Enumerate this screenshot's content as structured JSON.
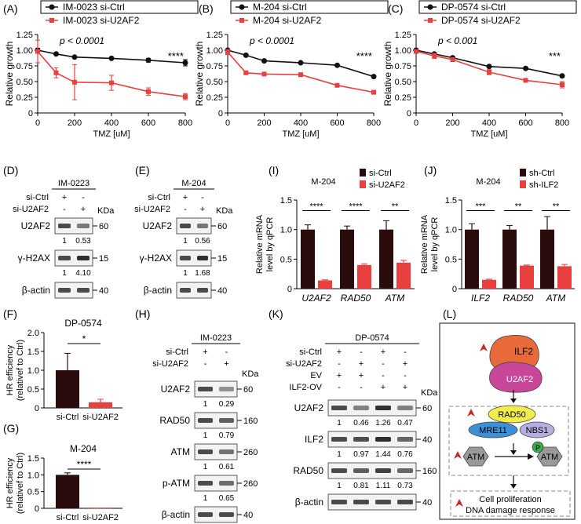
{
  "colors": {
    "ctrl": "#111111",
    "kd": "#e8403f",
    "bar_ctrl": "#2b0c0c",
    "bar_kd": "#e8403f",
    "band": "#2e2e2e",
    "gray": "#888888",
    "ilf2_top": "#e86a3a",
    "u2af2": "#c9479b",
    "rad50": "#f2ee49",
    "mre11": "#3d8fd8",
    "nbs1": "#b5aee0",
    "p_circle": "#3daa4e",
    "hex": "#9a9a9a",
    "arrow": "#c62828"
  },
  "chart_data": [
    {
      "panel": "(A)",
      "type": "line",
      "xlabel": "TMZ [uM]",
      "ylabel": "Relative growth",
      "xticks": [
        0,
        200,
        400,
        600,
        800
      ],
      "yticks": [
        "0",
        "0.25",
        "0.50",
        "0.75",
        "1.00",
        "1.25"
      ],
      "ylim": [
        0,
        1.25
      ],
      "pvalue": "p < 0.0001",
      "signif": "****",
      "x": [
        0,
        100,
        200,
        400,
        600,
        800
      ],
      "series": [
        {
          "name": "IM-0023 si-Ctrl",
          "values": [
            1.0,
            0.94,
            0.89,
            0.87,
            0.84,
            0.8
          ],
          "err": [
            0.03,
            0.02,
            0.01,
            0.01,
            0.03,
            0.05
          ]
        },
        {
          "name": "IM-0023 si-U2AF2",
          "values": [
            0.98,
            0.64,
            0.49,
            0.48,
            0.34,
            0.26
          ],
          "err": [
            0.18,
            0.08,
            0.28,
            0.12,
            0.06,
            0.05
          ]
        }
      ]
    },
    {
      "panel": "(B)",
      "type": "line",
      "xlabel": "TMZ [uM]",
      "ylabel": "Relative growth",
      "xticks": [
        0,
        200,
        400,
        600,
        800
      ],
      "yticks": [
        "0",
        "0.25",
        "0.50",
        "0.75",
        "1.00",
        "1.25"
      ],
      "ylim": [
        0,
        1.25
      ],
      "pvalue": "p < 0.0001",
      "signif": "****",
      "x": [
        0,
        100,
        200,
        400,
        600,
        800
      ],
      "series": [
        {
          "name": "M-204 si-Ctrl",
          "values": [
            1.0,
            0.92,
            0.83,
            0.8,
            0.76,
            0.58
          ],
          "err": [
            0.01,
            0.01,
            0.01,
            0.01,
            0.01,
            0.01
          ]
        },
        {
          "name": "M-204 si-U2AF2",
          "values": [
            0.97,
            0.64,
            0.62,
            0.61,
            0.44,
            0.33
          ],
          "err": [
            0.04,
            0.02,
            0.02,
            0.02,
            0.02,
            0.01
          ]
        }
      ]
    },
    {
      "panel": "(C)",
      "type": "line",
      "xlabel": "TMZ [uM]",
      "ylabel": "Relative growth",
      "xticks": [
        0,
        200,
        400,
        600,
        800
      ],
      "yticks": [
        "0",
        "0.25",
        "0.50",
        "0.75",
        "1.00",
        "1.25"
      ],
      "ylim": [
        0,
        1.25
      ],
      "pvalue": "p < 0.001",
      "signif": "***",
      "x": [
        0,
        100,
        200,
        400,
        600,
        800
      ],
      "series": [
        {
          "name": "DP-0574 si-Ctrl",
          "values": [
            1.0,
            0.94,
            0.88,
            0.74,
            0.71,
            0.59
          ],
          "err": [
            0.02,
            0.02,
            0.02,
            0.02,
            0.01,
            0.02
          ]
        },
        {
          "name": "DP-0574 si-U2AF2",
          "values": [
            0.98,
            0.91,
            0.85,
            0.65,
            0.52,
            0.45
          ],
          "err": [
            0.02,
            0.04,
            0.03,
            0.04,
            0.03,
            0.05
          ]
        }
      ]
    },
    {
      "panel": "(I)",
      "type": "bar",
      "title": "M-204",
      "ylabel": "Relative mRNA level by qPCR",
      "yticks": [
        "0",
        "0.5",
        "1.0",
        "1.5"
      ],
      "ylim": [
        0,
        1.5
      ],
      "categories": [
        "U2AF2",
        "RAD50",
        "ATM"
      ],
      "signif": [
        "****",
        "****",
        "**"
      ],
      "series": [
        {
          "name": "si-Ctrl",
          "values": [
            1.0,
            1.0,
            1.0
          ],
          "err": [
            0.08,
            0.06,
            0.15
          ]
        },
        {
          "name": "si-U2AF2",
          "values": [
            0.14,
            0.4,
            0.44
          ],
          "err": [
            0.01,
            0.02,
            0.04
          ]
        }
      ]
    },
    {
      "panel": "(J)",
      "type": "bar",
      "title": "M-204",
      "ylabel": "Relative mRNA level by qPCR",
      "yticks": [
        "0",
        "0.5",
        "1.0",
        "1.5"
      ],
      "ylim": [
        0,
        1.5
      ],
      "categories": [
        "ILF2",
        "RAD50",
        "ATM"
      ],
      "signif": [
        "***",
        "**",
        "**"
      ],
      "series": [
        {
          "name": "sh-Ctrl",
          "values": [
            1.0,
            1.0,
            1.0
          ],
          "err": [
            0.1,
            0.07,
            0.22
          ]
        },
        {
          "name": "sh-ILF2",
          "values": [
            0.15,
            0.39,
            0.38
          ],
          "err": [
            0.01,
            0.01,
            0.03
          ]
        }
      ]
    },
    {
      "panel": "(F)",
      "type": "bar",
      "title": "DP-0574",
      "ylabel": "HR efficiency (relativef to Ctrl)",
      "yticks": [
        "0",
        "0.5",
        "1.0",
        "1.5",
        "2.0"
      ],
      "ylim": [
        0,
        2.0
      ],
      "categories": [
        "si-Ctrl",
        "si-U2AF2"
      ],
      "signif": "*",
      "values": [
        1.0,
        0.15
      ],
      "err": [
        0.45,
        0.08
      ]
    },
    {
      "panel": "(G)",
      "type": "bar",
      "title": "M-204",
      "ylabel": "HR efficiency (relativef to Ctrl)",
      "yticks": [
        "0",
        "0.5",
        "1.0",
        "1.5"
      ],
      "ylim": [
        0,
        1.5
      ],
      "categories": [
        "si-Ctrl",
        "si-U2AF2"
      ],
      "signif": "****",
      "values": [
        1.0,
        0.02
      ],
      "err": [
        0.06,
        0.0
      ]
    }
  ],
  "blots": {
    "D": {
      "label": "(D)",
      "cell": "IM-0223",
      "rows": [
        {
          "name": "si-Ctrl",
          "marks": [
            "+",
            "-"
          ]
        },
        {
          "name": "si-U2AF2",
          "marks": [
            "-",
            "+"
          ]
        }
      ],
      "kda": "KDa",
      "bands": [
        {
          "name": "U2AF2",
          "mw": "60",
          "quant": [
            "1",
            "0.53"
          ]
        },
        {
          "name": "γ-H2AX",
          "mw": "15",
          "quant": [
            "1",
            "4.10"
          ]
        },
        {
          "name": "β-actin",
          "mw": "40"
        }
      ]
    },
    "E": {
      "label": "(E)",
      "cell": "M-204",
      "rows": [
        {
          "name": "si-Ctrl",
          "marks": [
            "+",
            "-"
          ]
        },
        {
          "name": "si-U2AF2",
          "marks": [
            "-",
            "+"
          ]
        }
      ],
      "kda": "KDa",
      "bands": [
        {
          "name": "U2AF2",
          "mw": "60",
          "quant": [
            "1",
            "0.56"
          ]
        },
        {
          "name": "γ-H2AX",
          "mw": "15",
          "quant": [
            "1",
            "1.68"
          ]
        },
        {
          "name": "β-actin",
          "mw": "40"
        }
      ]
    },
    "H": {
      "label": "(H)",
      "cell": "IM-0223",
      "rows": [
        {
          "name": "si-Ctrl",
          "marks": [
            "+",
            "-"
          ]
        },
        {
          "name": "si-U2AF2",
          "marks": [
            "-",
            "+"
          ]
        }
      ],
      "kda": "KDa",
      "bands": [
        {
          "name": "U2AF2",
          "mw": "60",
          "quant": [
            "1",
            "0.29"
          ]
        },
        {
          "name": "RAD50",
          "mw": "160",
          "quant": [
            "1",
            "0.79"
          ]
        },
        {
          "name": "ATM",
          "mw": "260",
          "quant": [
            "1",
            "0.61"
          ]
        },
        {
          "name": "p-ATM",
          "mw": "260",
          "quant": [
            "1",
            "0.65"
          ]
        },
        {
          "name": "β-actin",
          "mw": "40"
        }
      ]
    },
    "K": {
      "label": "(K)",
      "cell": "DP-0574",
      "rows": [
        {
          "name": "si-Ctrl",
          "marks": [
            "+",
            "-",
            "+",
            "-"
          ]
        },
        {
          "name": "si-U2AF2",
          "marks": [
            "-",
            "+",
            "-",
            "+"
          ]
        },
        {
          "name": "EV",
          "marks": [
            "+",
            "+",
            "-",
            "-"
          ]
        },
        {
          "name": "ILF2-OV",
          "marks": [
            "-",
            "-",
            "+",
            "+"
          ]
        }
      ],
      "kda": "KDa",
      "bands": [
        {
          "name": "U2AF2",
          "mw": "60",
          "quant": [
            "1",
            "0.46",
            "1.26",
            "0.47"
          ]
        },
        {
          "name": "ILF2",
          "mw": "40",
          "quant": [
            "1",
            "0.97",
            "1.44",
            "0.76"
          ]
        },
        {
          "name": "RAD50",
          "mw": "160",
          "quant": [
            "1",
            "0.81",
            "1.11",
            "0.73"
          ]
        },
        {
          "name": "β-actin",
          "mw": "40"
        }
      ]
    }
  },
  "schematic": {
    "label": "(L)",
    "ilf2": "ILF2",
    "u2af2": "U2AF2",
    "rad50": "RAD50",
    "mre11": "MRE11",
    "nbs1": "NBS1",
    "atm": "ATM",
    "p": "P",
    "out1": "Cell proliferation",
    "out2": "DNA damage response"
  }
}
